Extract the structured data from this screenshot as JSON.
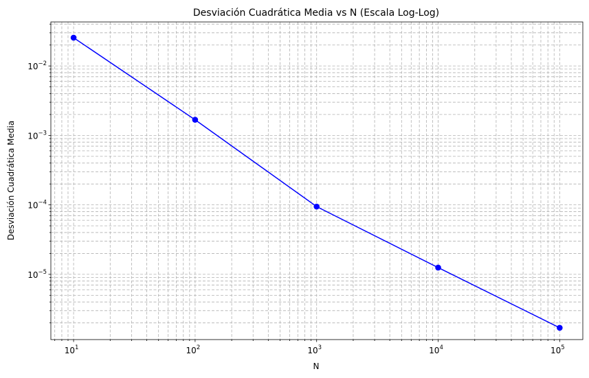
{
  "chart_data": {
    "type": "line",
    "title": "Desviación Cuadrática Media vs N (Escala Log-Log)",
    "xlabel": "N",
    "ylabel": "Desviación Cuadrática Media",
    "xscale": "log",
    "yscale": "log",
    "xlim": [
      6.5,
      155000
    ],
    "ylim": [
      1.15e-06,
      0.043
    ],
    "grid": true,
    "grid_style": "dashed",
    "color": "#0000ff",
    "marker": "circle",
    "x": [
      10,
      100,
      1000,
      10000,
      100000
    ],
    "y": [
      0.0255,
      0.00168,
      9.45e-05,
      1.25e-05,
      1.7e-06
    ],
    "x_ticks": [
      {
        "base": "10",
        "exp": "1"
      },
      {
        "base": "10",
        "exp": "2"
      },
      {
        "base": "10",
        "exp": "3"
      },
      {
        "base": "10",
        "exp": "4"
      },
      {
        "base": "10",
        "exp": "5"
      }
    ],
    "y_ticks": [
      {
        "base": "10",
        "exp": "−5"
      },
      {
        "base": "10",
        "exp": "−4"
      },
      {
        "base": "10",
        "exp": "−3"
      },
      {
        "base": "10",
        "exp": "−2"
      }
    ]
  }
}
